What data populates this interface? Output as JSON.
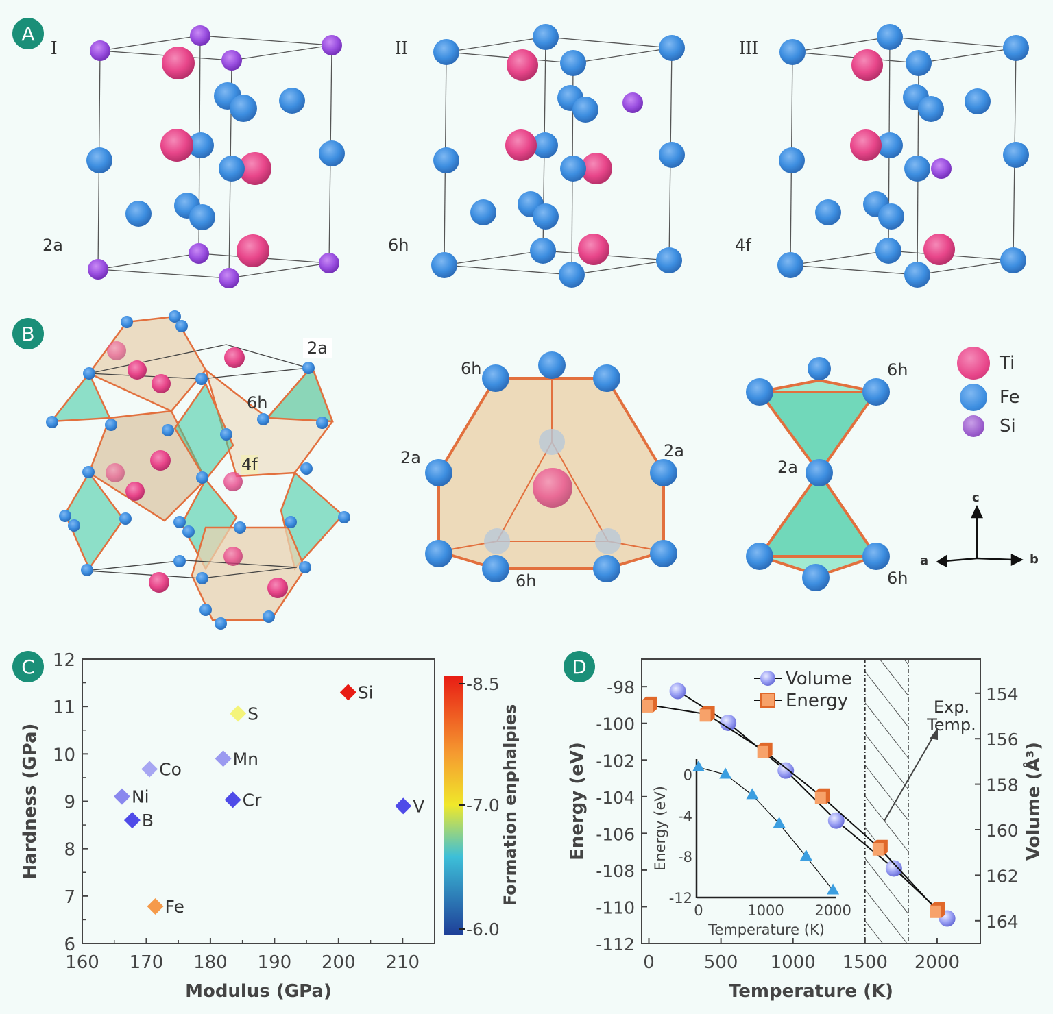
{
  "panels": {
    "A": {
      "badge": "A",
      "structures": [
        {
          "roman": "I",
          "site": "2a",
          "dopant_site_color": "#9a4fe0"
        },
        {
          "roman": "II",
          "site": "6h"
        },
        {
          "roman": "III",
          "site": "4f"
        }
      ]
    },
    "B": {
      "badge": "B",
      "site_labels": {
        "main_2a": "2a",
        "main_6h": "6h",
        "main_4f": "4f",
        "poly_6h_top": "6h",
        "poly_2a_left": "2a",
        "poly_2a_right": "2a",
        "poly_6h_bottom": "6h",
        "bipyr_6h_top": "6h",
        "bipyr_2a": "2a",
        "bipyr_6h_bottom": "6h"
      },
      "legend": [
        {
          "label": "Ti",
          "color": "#e8468a"
        },
        {
          "label": "Fe",
          "color": "#3d8ee0"
        },
        {
          "label": "Si",
          "color": "#9a5ccc"
        }
      ],
      "axes": {
        "a": "a",
        "b": "b",
        "c": "c"
      }
    },
    "C": {
      "badge": "C"
    },
    "D": {
      "badge": "D"
    }
  },
  "chart_data": [
    {
      "type": "scatter",
      "panel": "C",
      "title": "",
      "xlabel": "Modulus (GPa)",
      "ylabel": "Hardness (GPa)",
      "xlim": [
        160,
        215
      ],
      "ylim": [
        6,
        12
      ],
      "xticks": [
        160,
        170,
        180,
        190,
        200,
        210
      ],
      "yticks": [
        6,
        7,
        8,
        9,
        10,
        11,
        12
      ],
      "points": [
        {
          "label": "Si",
          "x": 201.5,
          "y": 11.3,
          "color": "#e81c14"
        },
        {
          "label": "S",
          "x": 184.3,
          "y": 10.85,
          "color": "#f4f47a"
        },
        {
          "label": "Mn",
          "x": 182.0,
          "y": 9.9,
          "color": "#9b9af0"
        },
        {
          "label": "Co",
          "x": 170.5,
          "y": 9.68,
          "color": "#a7a6f2"
        },
        {
          "label": "Ni",
          "x": 166.2,
          "y": 9.1,
          "color": "#8a88ee"
        },
        {
          "label": "Cr",
          "x": 183.5,
          "y": 9.03,
          "color": "#4f4be8"
        },
        {
          "label": "V",
          "x": 210.1,
          "y": 8.9,
          "color": "#4f4be8"
        },
        {
          "label": "B",
          "x": 167.8,
          "y": 8.6,
          "color": "#4f4be8"
        },
        {
          "label": "Fe",
          "x": 171.4,
          "y": 6.78,
          "color": "#f59a4a"
        }
      ],
      "colorbar": {
        "label": "Formation enphalpies (eV/atom)",
        "ticks": [
          "-8.5",
          "-7.0",
          "-6.0"
        ],
        "range": [
          -8.5,
          -6.0
        ]
      }
    },
    {
      "type": "line",
      "panel": "D",
      "xlabel": "Temperature (K)",
      "ylabel": "Energy (eV)",
      "y2label": "Volume (Å³)",
      "xlim": [
        -50,
        2300
      ],
      "ylim": [
        -112,
        -96.5
      ],
      "y2lim": [
        165,
        152.5
      ],
      "xticks": [
        0,
        500,
        1000,
        1500,
        2000
      ],
      "yticks": [
        -98,
        -100,
        -102,
        -104,
        -106,
        -108,
        -110,
        -112
      ],
      "y2ticks": [
        154,
        156,
        158,
        160,
        162,
        164
      ],
      "shaded_region": {
        "x_start": 1500,
        "x_end": 1800,
        "label": "Exp. Temp."
      },
      "series": [
        {
          "name": "Volume",
          "axis": "right",
          "marker": "sphere",
          "color": "#9aa0f4",
          "x": [
            200,
            550,
            950,
            1300,
            1700,
            2070
          ],
          "y": [
            153.9,
            155.3,
            157.4,
            159.6,
            161.7,
            163.9
          ]
        },
        {
          "name": "Energy",
          "axis": "left",
          "marker": "cube",
          "color": "#f7a26a",
          "x": [
            0,
            400,
            800,
            1200,
            1600,
            2000
          ],
          "y": [
            -99.0,
            -99.5,
            -101.5,
            -104.0,
            -106.8,
            -110.2
          ]
        }
      ],
      "inset": {
        "type": "line",
        "xlabel": "Temperature (K)",
        "ylabel": "Energy (eV)",
        "xlim": [
          -30,
          2050
        ],
        "ylim": [
          -12,
          1.5
        ],
        "xticks": [
          0,
          1000,
          2000
        ],
        "yticks": [
          0,
          -4,
          -8,
          -12
        ],
        "series": [
          {
            "name": "Energy",
            "marker": "triangle",
            "color": "#3b9ee0",
            "x": [
              0,
              400,
              800,
              1200,
              1600,
              2000
            ],
            "y": [
              0.7,
              0.0,
              -2.0,
              -4.8,
              -8.0,
              -11.3
            ]
          }
        ]
      }
    }
  ]
}
